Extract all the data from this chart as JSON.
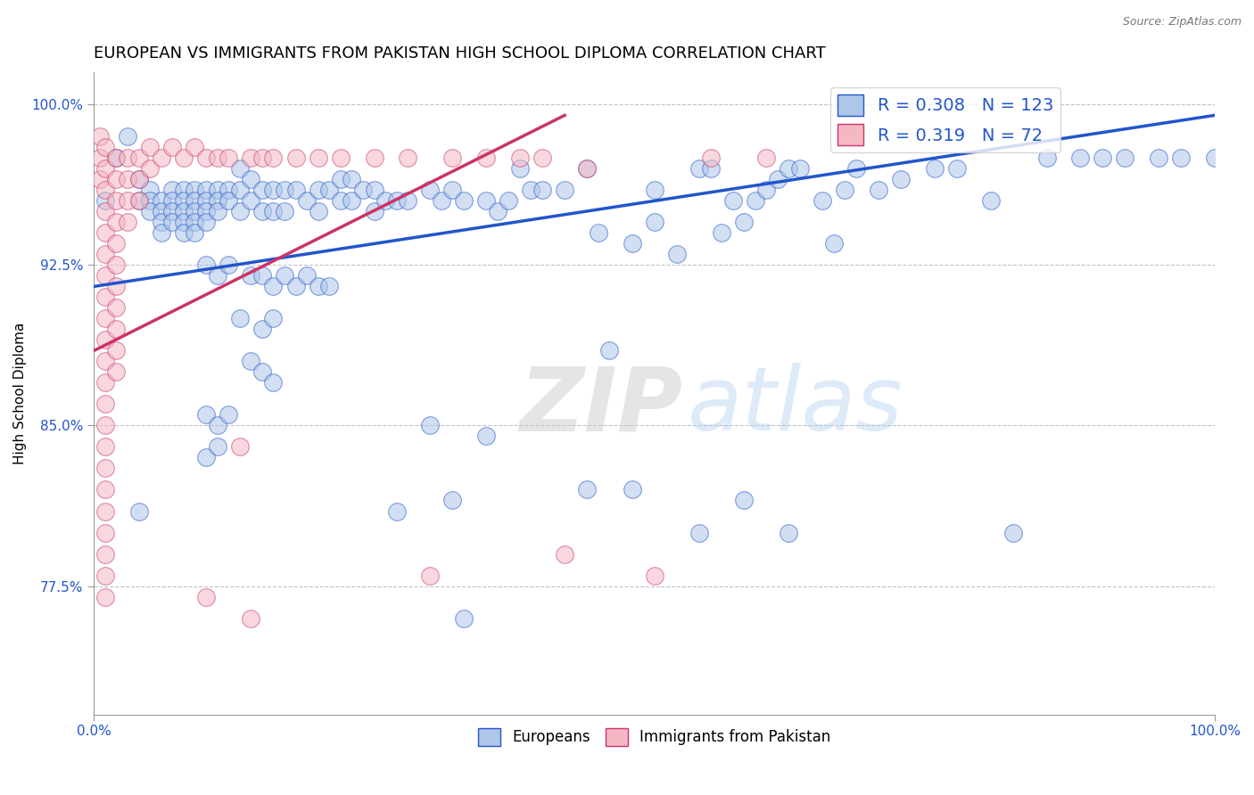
{
  "title": "EUROPEAN VS IMMIGRANTS FROM PAKISTAN HIGH SCHOOL DIPLOMA CORRELATION CHART",
  "source": "Source: ZipAtlas.com",
  "ylabel": "High School Diploma",
  "xlim": [
    0.0,
    1.0
  ],
  "ylim": [
    0.715,
    1.015
  ],
  "yticks": [
    0.775,
    0.85,
    0.925,
    1.0
  ],
  "ytick_labels": [
    "77.5%",
    "85.0%",
    "92.5%",
    "100.0%"
  ],
  "xtick_labels": [
    "0.0%",
    "100.0%"
  ],
  "legend_entries": [
    "Europeans",
    "Immigrants from Pakistan"
  ],
  "blue_color": "#aec6e8",
  "pink_color": "#f4b8c4",
  "blue_line_color": "#2255cc",
  "pink_line_color": "#cc3366",
  "R_blue": 0.308,
  "N_blue": 123,
  "R_pink": 0.319,
  "N_pink": 72,
  "blue_line": [
    [
      0.0,
      0.915
    ],
    [
      1.0,
      0.995
    ]
  ],
  "pink_line": [
    [
      0.0,
      0.885
    ],
    [
      0.42,
      0.995
    ]
  ],
  "blue_scatter": [
    [
      0.01,
      0.955
    ],
    [
      0.02,
      0.975
    ],
    [
      0.03,
      0.985
    ],
    [
      0.04,
      0.965
    ],
    [
      0.04,
      0.955
    ],
    [
      0.05,
      0.96
    ],
    [
      0.05,
      0.955
    ],
    [
      0.05,
      0.95
    ],
    [
      0.06,
      0.955
    ],
    [
      0.06,
      0.95
    ],
    [
      0.06,
      0.945
    ],
    [
      0.06,
      0.94
    ],
    [
      0.07,
      0.96
    ],
    [
      0.07,
      0.955
    ],
    [
      0.07,
      0.95
    ],
    [
      0.07,
      0.945
    ],
    [
      0.08,
      0.96
    ],
    [
      0.08,
      0.955
    ],
    [
      0.08,
      0.95
    ],
    [
      0.08,
      0.945
    ],
    [
      0.08,
      0.94
    ],
    [
      0.09,
      0.96
    ],
    [
      0.09,
      0.955
    ],
    [
      0.09,
      0.95
    ],
    [
      0.09,
      0.945
    ],
    [
      0.09,
      0.94
    ],
    [
      0.1,
      0.96
    ],
    [
      0.1,
      0.955
    ],
    [
      0.1,
      0.95
    ],
    [
      0.1,
      0.945
    ],
    [
      0.11,
      0.96
    ],
    [
      0.11,
      0.955
    ],
    [
      0.11,
      0.95
    ],
    [
      0.12,
      0.96
    ],
    [
      0.12,
      0.955
    ],
    [
      0.13,
      0.97
    ],
    [
      0.13,
      0.96
    ],
    [
      0.13,
      0.95
    ],
    [
      0.14,
      0.965
    ],
    [
      0.14,
      0.955
    ],
    [
      0.15,
      0.96
    ],
    [
      0.15,
      0.95
    ],
    [
      0.16,
      0.96
    ],
    [
      0.16,
      0.95
    ],
    [
      0.17,
      0.96
    ],
    [
      0.17,
      0.95
    ],
    [
      0.18,
      0.96
    ],
    [
      0.19,
      0.955
    ],
    [
      0.2,
      0.96
    ],
    [
      0.2,
      0.95
    ],
    [
      0.21,
      0.96
    ],
    [
      0.22,
      0.965
    ],
    [
      0.22,
      0.955
    ],
    [
      0.23,
      0.965
    ],
    [
      0.23,
      0.955
    ],
    [
      0.24,
      0.96
    ],
    [
      0.25,
      0.96
    ],
    [
      0.25,
      0.95
    ],
    [
      0.26,
      0.955
    ],
    [
      0.27,
      0.955
    ],
    [
      0.28,
      0.955
    ],
    [
      0.3,
      0.96
    ],
    [
      0.31,
      0.955
    ],
    [
      0.32,
      0.96
    ],
    [
      0.33,
      0.955
    ],
    [
      0.1,
      0.925
    ],
    [
      0.11,
      0.92
    ],
    [
      0.12,
      0.925
    ],
    [
      0.14,
      0.92
    ],
    [
      0.15,
      0.92
    ],
    [
      0.16,
      0.915
    ],
    [
      0.17,
      0.92
    ],
    [
      0.18,
      0.915
    ],
    [
      0.19,
      0.92
    ],
    [
      0.2,
      0.915
    ],
    [
      0.21,
      0.915
    ],
    [
      0.13,
      0.9
    ],
    [
      0.15,
      0.895
    ],
    [
      0.16,
      0.9
    ],
    [
      0.14,
      0.88
    ],
    [
      0.15,
      0.875
    ],
    [
      0.16,
      0.87
    ],
    [
      0.1,
      0.855
    ],
    [
      0.11,
      0.85
    ],
    [
      0.12,
      0.855
    ],
    [
      0.1,
      0.835
    ],
    [
      0.11,
      0.84
    ],
    [
      0.04,
      0.81
    ],
    [
      0.35,
      0.955
    ],
    [
      0.36,
      0.95
    ],
    [
      0.37,
      0.955
    ],
    [
      0.38,
      0.97
    ],
    [
      0.39,
      0.96
    ],
    [
      0.4,
      0.96
    ],
    [
      0.42,
      0.96
    ],
    [
      0.44,
      0.97
    ],
    [
      0.45,
      0.94
    ],
    [
      0.46,
      0.885
    ],
    [
      0.48,
      0.935
    ],
    [
      0.5,
      0.96
    ],
    [
      0.5,
      0.945
    ],
    [
      0.52,
      0.93
    ],
    [
      0.54,
      0.97
    ],
    [
      0.55,
      0.97
    ],
    [
      0.56,
      0.94
    ],
    [
      0.57,
      0.955
    ],
    [
      0.58,
      0.945
    ],
    [
      0.59,
      0.955
    ],
    [
      0.6,
      0.96
    ],
    [
      0.61,
      0.965
    ],
    [
      0.62,
      0.97
    ],
    [
      0.63,
      0.97
    ],
    [
      0.65,
      0.955
    ],
    [
      0.66,
      0.935
    ],
    [
      0.67,
      0.96
    ],
    [
      0.68,
      0.97
    ],
    [
      0.7,
      0.96
    ],
    [
      0.72,
      0.965
    ],
    [
      0.75,
      0.97
    ],
    [
      0.77,
      0.97
    ],
    [
      0.8,
      0.955
    ],
    [
      0.82,
      0.8
    ],
    [
      0.85,
      0.975
    ],
    [
      0.88,
      0.975
    ],
    [
      0.9,
      0.975
    ],
    [
      0.92,
      0.975
    ],
    [
      0.95,
      0.975
    ],
    [
      0.97,
      0.975
    ],
    [
      1.0,
      0.975
    ],
    [
      0.44,
      0.82
    ],
    [
      0.48,
      0.82
    ],
    [
      0.54,
      0.8
    ],
    [
      0.58,
      0.815
    ],
    [
      0.62,
      0.8
    ],
    [
      0.3,
      0.85
    ],
    [
      0.35,
      0.845
    ],
    [
      0.27,
      0.81
    ],
    [
      0.32,
      0.815
    ],
    [
      0.33,
      0.76
    ]
  ],
  "pink_scatter": [
    [
      0.005,
      0.985
    ],
    [
      0.005,
      0.975
    ],
    [
      0.005,
      0.965
    ],
    [
      0.01,
      0.98
    ],
    [
      0.01,
      0.97
    ],
    [
      0.01,
      0.96
    ],
    [
      0.01,
      0.95
    ],
    [
      0.01,
      0.94
    ],
    [
      0.01,
      0.93
    ],
    [
      0.01,
      0.92
    ],
    [
      0.01,
      0.91
    ],
    [
      0.01,
      0.9
    ],
    [
      0.01,
      0.89
    ],
    [
      0.01,
      0.88
    ],
    [
      0.01,
      0.87
    ],
    [
      0.01,
      0.86
    ],
    [
      0.01,
      0.85
    ],
    [
      0.01,
      0.84
    ],
    [
      0.01,
      0.83
    ],
    [
      0.01,
      0.82
    ],
    [
      0.01,
      0.81
    ],
    [
      0.01,
      0.8
    ],
    [
      0.01,
      0.79
    ],
    [
      0.01,
      0.78
    ],
    [
      0.01,
      0.77
    ],
    [
      0.02,
      0.975
    ],
    [
      0.02,
      0.965
    ],
    [
      0.02,
      0.955
    ],
    [
      0.02,
      0.945
    ],
    [
      0.02,
      0.935
    ],
    [
      0.02,
      0.925
    ],
    [
      0.02,
      0.915
    ],
    [
      0.02,
      0.905
    ],
    [
      0.02,
      0.895
    ],
    [
      0.02,
      0.885
    ],
    [
      0.02,
      0.875
    ],
    [
      0.03,
      0.975
    ],
    [
      0.03,
      0.965
    ],
    [
      0.03,
      0.955
    ],
    [
      0.03,
      0.945
    ],
    [
      0.04,
      0.975
    ],
    [
      0.04,
      0.965
    ],
    [
      0.04,
      0.955
    ],
    [
      0.05,
      0.98
    ],
    [
      0.05,
      0.97
    ],
    [
      0.06,
      0.975
    ],
    [
      0.07,
      0.98
    ],
    [
      0.08,
      0.975
    ],
    [
      0.09,
      0.98
    ],
    [
      0.1,
      0.975
    ],
    [
      0.11,
      0.975
    ],
    [
      0.12,
      0.975
    ],
    [
      0.13,
      0.84
    ],
    [
      0.14,
      0.975
    ],
    [
      0.15,
      0.975
    ],
    [
      0.16,
      0.975
    ],
    [
      0.18,
      0.975
    ],
    [
      0.2,
      0.975
    ],
    [
      0.22,
      0.975
    ],
    [
      0.1,
      0.77
    ],
    [
      0.14,
      0.76
    ],
    [
      0.25,
      0.975
    ],
    [
      0.28,
      0.975
    ],
    [
      0.3,
      0.78
    ],
    [
      0.32,
      0.975
    ],
    [
      0.35,
      0.975
    ],
    [
      0.38,
      0.975
    ],
    [
      0.4,
      0.975
    ],
    [
      0.42,
      0.79
    ],
    [
      0.44,
      0.97
    ],
    [
      0.5,
      0.78
    ],
    [
      0.55,
      0.975
    ],
    [
      0.6,
      0.975
    ]
  ],
  "watermark_zip": "ZIP",
  "watermark_atlas": "atlas",
  "title_fontsize": 13,
  "axis_label_fontsize": 11,
  "tick_fontsize": 11
}
